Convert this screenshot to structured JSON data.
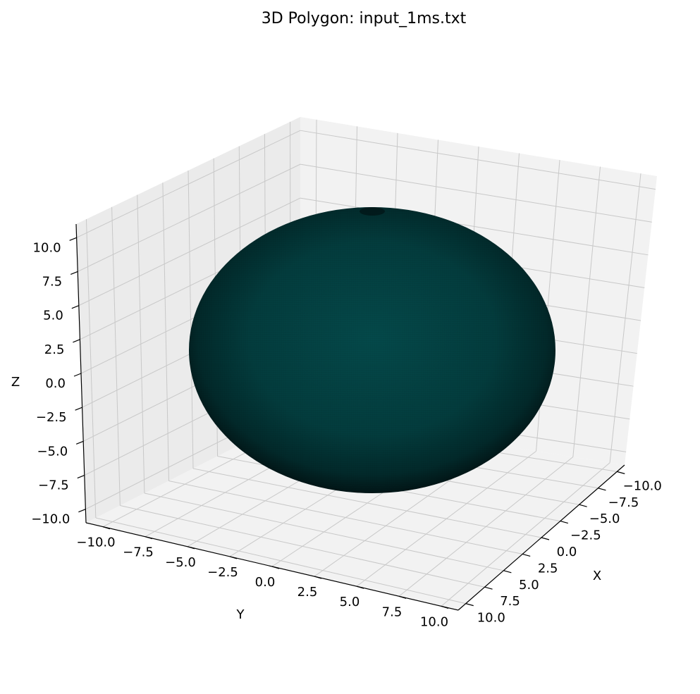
{
  "chart_data": {
    "type": "surface3d",
    "title": "3D Polygon: input_1ms.txt",
    "xlabel": "X",
    "ylabel": "Y",
    "zlabel": "Z",
    "xlim": [
      -11,
      11
    ],
    "ylim": [
      -11,
      11
    ],
    "zlim": [
      -11,
      11
    ],
    "x_ticks": [
      "−10.0",
      "−7.5",
      "−5.0",
      "−2.5",
      "0.0",
      "2.5",
      "5.0",
      "7.5",
      "10.0"
    ],
    "y_ticks": [
      "−10.0",
      "−7.5",
      "−5.0",
      "−2.5",
      "0.0",
      "2.5",
      "5.0",
      "7.5",
      "10.0"
    ],
    "z_ticks": [
      "−10.0",
      "−7.5",
      "−5.0",
      "−2.5",
      "0.0",
      "2.5",
      "5.0",
      "7.5",
      "10.0"
    ],
    "grid": true,
    "surface": {
      "shape": "sphere",
      "center": [
        0,
        0,
        0
      ],
      "radius": 10,
      "color": "#00504f"
    },
    "colors": {
      "pane": "#f2f2f2",
      "grid": "#c8c8c8",
      "surface_light": "#04494a",
      "surface_dark": "#010f10"
    }
  }
}
